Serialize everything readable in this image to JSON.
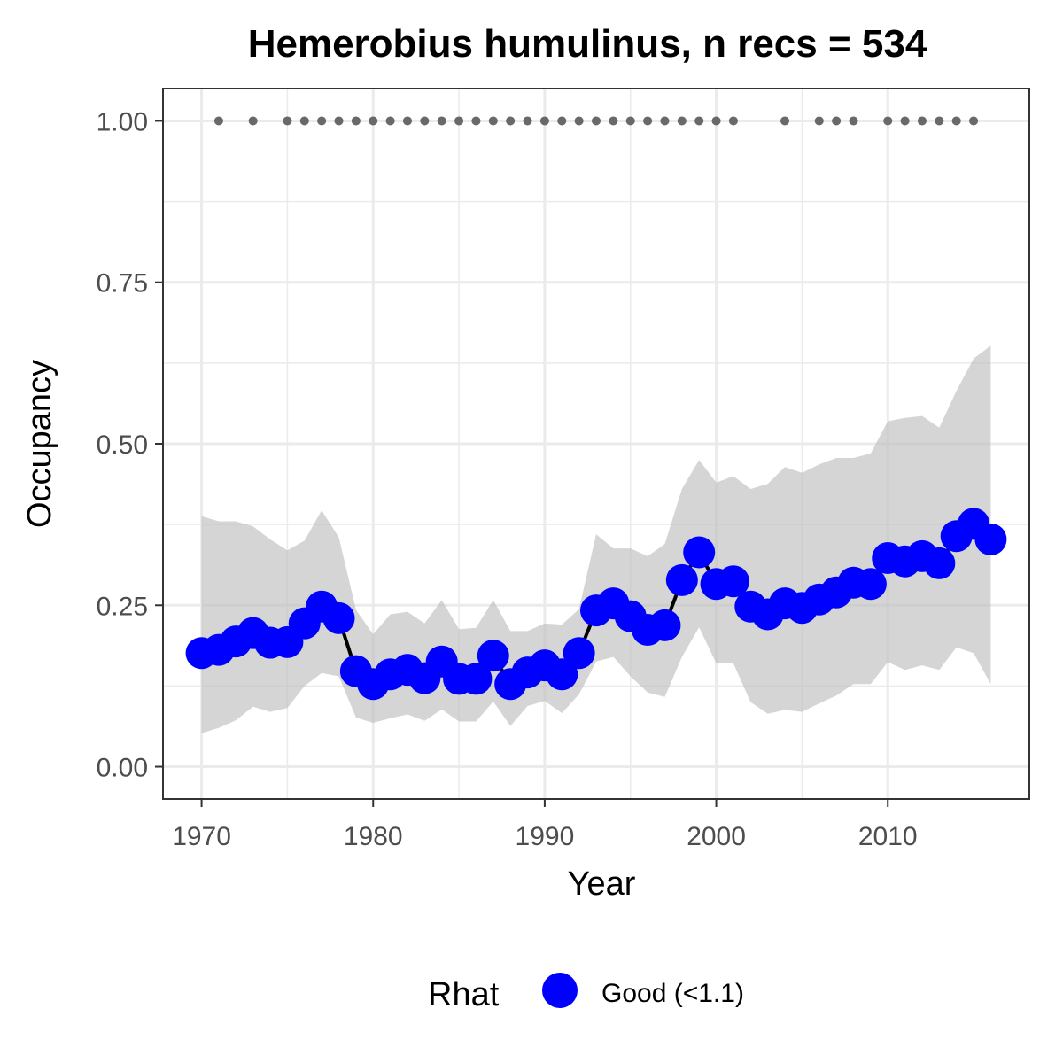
{
  "chart_data": {
    "type": "line",
    "title": "Hemerobius humulinus, n recs = 534",
    "xlabel": "Year",
    "ylabel": "Occupancy",
    "xlim": [
      1967.75,
      2018.25
    ],
    "ylim": [
      -0.05,
      1.05
    ],
    "x_ticks": [
      1970,
      1980,
      1990,
      2000,
      2010
    ],
    "x_tick_labels": [
      "1970",
      "1980",
      "1990",
      "2000",
      "2010"
    ],
    "y_ticks": [
      0,
      0.25,
      0.5,
      0.75,
      1.0
    ],
    "y_tick_labels": [
      "0.00",
      "0.25",
      "0.50",
      "0.75",
      "1.00"
    ],
    "grid": true,
    "legend": {
      "title": "Rhat",
      "position": "bottom",
      "entries": [
        {
          "label": "Good (<1.1)",
          "color": "#0000ff"
        }
      ]
    },
    "colors": {
      "series": "#0000ff",
      "line": "#000000",
      "ribbon": "#bfbfbf",
      "record_points": "#696969"
    },
    "series": [
      {
        "x": [
          1970,
          1971,
          1972,
          1973,
          1974,
          1975,
          1976,
          1977,
          1978,
          1979,
          1980,
          1981,
          1982,
          1983,
          1984,
          1985,
          1986,
          1987,
          1988,
          1989,
          1990,
          1991,
          1992,
          1993,
          1994,
          1995,
          1996,
          1997,
          1998,
          1999,
          2000,
          2001,
          2002,
          2003,
          2004,
          2005,
          2006,
          2007,
          2008,
          2009,
          2010,
          2011,
          2012,
          2013,
          2014,
          2015,
          2016
        ],
        "y": [
          0.176,
          0.181,
          0.194,
          0.207,
          0.192,
          0.193,
          0.222,
          0.248,
          0.23,
          0.148,
          0.128,
          0.143,
          0.15,
          0.137,
          0.163,
          0.136,
          0.136,
          0.172,
          0.128,
          0.146,
          0.157,
          0.143,
          0.176,
          0.242,
          0.253,
          0.233,
          0.212,
          0.219,
          0.289,
          0.332,
          0.283,
          0.287,
          0.248,
          0.236,
          0.253,
          0.246,
          0.259,
          0.27,
          0.285,
          0.283,
          0.323,
          0.318,
          0.326,
          0.315,
          0.357,
          0.376,
          0.352
        ],
        "lower": [
          0.052,
          0.06,
          0.072,
          0.093,
          0.085,
          0.091,
          0.125,
          0.145,
          0.14,
          0.076,
          0.068,
          0.075,
          0.081,
          0.071,
          0.089,
          0.07,
          0.07,
          0.101,
          0.063,
          0.094,
          0.102,
          0.083,
          0.112,
          0.163,
          0.17,
          0.14,
          0.115,
          0.108,
          0.17,
          0.216,
          0.16,
          0.16,
          0.1,
          0.082,
          0.088,
          0.085,
          0.098,
          0.11,
          0.128,
          0.128,
          0.162,
          0.15,
          0.157,
          0.15,
          0.185,
          0.176,
          0.128
        ],
        "upper": [
          0.388,
          0.38,
          0.38,
          0.372,
          0.352,
          0.335,
          0.35,
          0.397,
          0.355,
          0.243,
          0.205,
          0.236,
          0.24,
          0.222,
          0.258,
          0.213,
          0.215,
          0.258,
          0.21,
          0.21,
          0.222,
          0.22,
          0.244,
          0.36,
          0.338,
          0.338,
          0.326,
          0.345,
          0.43,
          0.475,
          0.44,
          0.45,
          0.43,
          0.438,
          0.464,
          0.455,
          0.468,
          0.478,
          0.478,
          0.485,
          0.535,
          0.54,
          0.543,
          0.525,
          0.582,
          0.632,
          0.652
        ]
      }
    ],
    "record_years": [
      1971,
      1973,
      1975,
      1976,
      1977,
      1978,
      1979,
      1980,
      1981,
      1982,
      1983,
      1984,
      1985,
      1986,
      1987,
      1988,
      1989,
      1990,
      1991,
      1992,
      1993,
      1994,
      1995,
      1996,
      1997,
      1998,
      1999,
      2000,
      2001,
      2004,
      2006,
      2007,
      2008,
      2010,
      2011,
      2012,
      2013,
      2014,
      2015
    ],
    "record_value": 1.0
  }
}
